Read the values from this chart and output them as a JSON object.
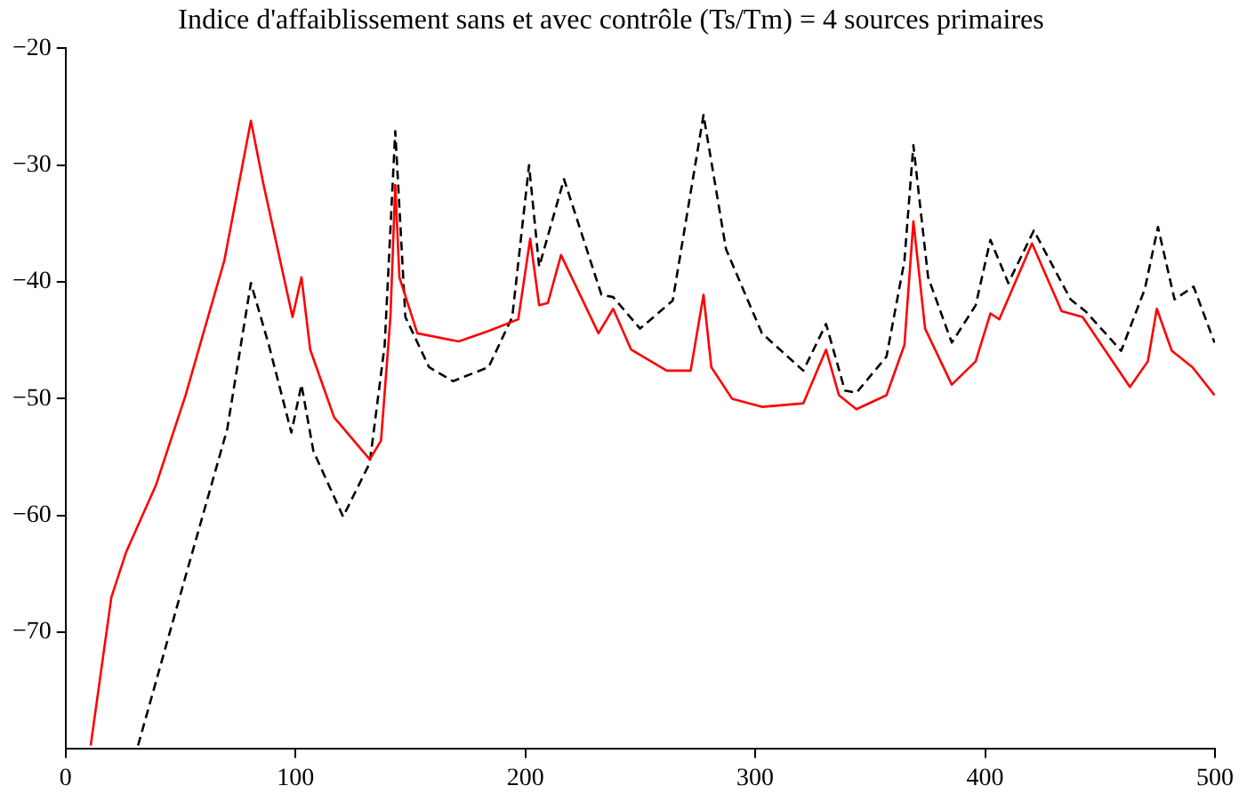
{
  "chart_data": {
    "type": "line",
    "title": "Indice d'affaiblissement sans et avec contrôle (Ts/Tm) = 4 sources primaires",
    "xlim": [
      0,
      500
    ],
    "xticks": [
      0,
      100,
      200,
      300,
      400,
      500
    ],
    "ylim": [
      -80,
      -20
    ],
    "yticks": [
      {
        "value": -70,
        "label": "−70"
      },
      {
        "value": -60,
        "label": "−60"
      },
      {
        "value": -50,
        "label": "−50"
      },
      {
        "value": -40,
        "label": "−40"
      },
      {
        "value": -30,
        "label": "−30"
      },
      {
        "value": -20,
        "label": "−20"
      }
    ],
    "grid": false,
    "legend": false,
    "marker": "none",
    "series": [
      {
        "color": "#ff0000",
        "line_style": "solid",
        "x": [
          10.9,
          19.9,
          26.4,
          39.3,
          52.2,
          59.9,
          69,
          80.6,
          85.8,
          98.7,
          102.6,
          106.4,
          116.8,
          132.3,
          137.2,
          141.3,
          143.4,
          145.2,
          153,
          171,
          184,
          196.9,
          202.1,
          206,
          209.8,
          215.5,
          231.8,
          238.2,
          246,
          261.5,
          271.9,
          277.5,
          280.9,
          289.9,
          302.9,
          320.9,
          330.8,
          336.4,
          344,
          357.1,
          364.9,
          368.8,
          373.9,
          385.5,
          395.9,
          402.3,
          406.2,
          420.4,
          433.3,
          442.4,
          463,
          470.8,
          474.7,
          481.2,
          490.2,
          499.8
        ],
        "values": [
          -79.7,
          -67,
          -63.1,
          -57.4,
          -49.7,
          -44.4,
          -38.2,
          -26.2,
          -31.4,
          -43,
          -39.6,
          -45.8,
          -51.6,
          -55.2,
          -53.6,
          -43,
          -31.7,
          -39.6,
          -44.4,
          -45.1,
          -44.2,
          -43.2,
          -36.3,
          -42,
          -41.8,
          -37.7,
          -44.4,
          -42.3,
          -45.8,
          -47.6,
          -47.6,
          -41.1,
          -47.3,
          -50,
          -50.7,
          -50.4,
          -45.8,
          -49.7,
          -50.9,
          -49.7,
          -45.4,
          -34.8,
          -44,
          -48.8,
          -46.8,
          -42.7,
          -43.2,
          -36.7,
          -42.5,
          -43,
          -49,
          -46.8,
          -42.3,
          -45.9,
          -47.3,
          -49.7
        ]
      },
      {
        "color": "#000000",
        "line_style": "dashed",
        "x": [
          31.5,
          49.6,
          70.3,
          80.6,
          88.4,
          98.2,
          102.6,
          107.8,
          120.7,
          132.3,
          138.8,
          143.4,
          147.8,
          158.1,
          168.5,
          184,
          194.3,
          201.6,
          206,
          216.8,
          233.1,
          238.2,
          249.9,
          264.1,
          277.5,
          287.3,
          302.9,
          320.9,
          330.8,
          339,
          344,
          357.1,
          364.9,
          368.8,
          375.2,
          385.5,
          395.9,
          402.3,
          410.1,
          421.2,
          437.2,
          443.6,
          459.2,
          469.5,
          475.2,
          482.4,
          490.7,
          499.8
        ],
        "values": [
          -79.7,
          -67,
          -52.6,
          -40.1,
          -45.4,
          -52.9,
          -48.8,
          -54.5,
          -60.1,
          -55.5,
          -45.4,
          -27.1,
          -43,
          -47.3,
          -48.5,
          -47.3,
          -43,
          -30,
          -38.7,
          -31.2,
          -41.1,
          -41.3,
          -44,
          -41.6,
          -25.7,
          -37.2,
          -44.4,
          -47.6,
          -43.6,
          -49.3,
          -49.5,
          -46.4,
          -38.2,
          -28.3,
          -39.6,
          -45.2,
          -42,
          -36.4,
          -40.1,
          -35.6,
          -41.5,
          -42.5,
          -45.9,
          -40.6,
          -35.3,
          -41.5,
          -40.4,
          -45.2
        ]
      }
    ]
  }
}
